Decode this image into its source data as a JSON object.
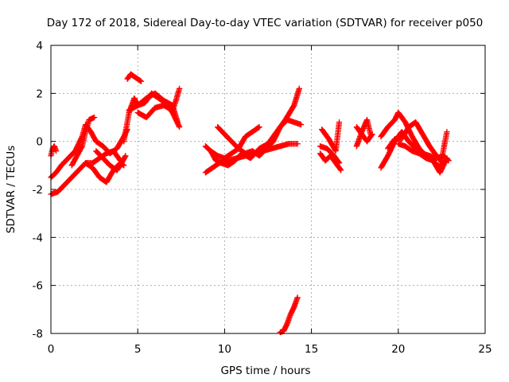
{
  "chart_data": {
    "type": "scatter",
    "title": "Day 172 of 2018, Sidereal Day-to-day VTEC variation (SDTVAR) for receiver p050",
    "xlabel": "GPS time / hours",
    "ylabel": "SDTVAR / TECUs",
    "xlim": [
      0,
      25
    ],
    "ylim": [
      -8,
      4
    ],
    "xticks": [
      0,
      5,
      10,
      15,
      20,
      25
    ],
    "yticks": [
      -8,
      -6,
      -4,
      -2,
      0,
      2,
      4
    ],
    "grid": true,
    "marker": "+",
    "color": "#ff0000",
    "series": [
      {
        "name": "SDTVAR",
        "segments": [
          {
            "x": [
              0.0,
              0.1,
              0.2,
              0.3
            ],
            "y": [
              -0.6,
              -0.3,
              -0.2,
              -0.4
            ]
          },
          {
            "x": [
              0.0,
              0.3,
              0.6,
              1.0,
              1.4,
              1.8,
              2.0,
              2.3,
              2.6,
              3.0,
              3.4,
              3.8,
              4.2,
              4.4
            ],
            "y": [
              -1.5,
              -1.3,
              -1.0,
              -0.7,
              -0.4,
              0.2,
              0.7,
              0.4,
              0.0,
              -0.2,
              -0.5,
              -0.3,
              0.2,
              0.5
            ]
          },
          {
            "x": [
              0.0,
              0.4,
              0.8,
              1.2,
              1.6,
              2.0,
              2.4,
              2.8,
              3.2,
              3.6,
              4.0
            ],
            "y": [
              -2.2,
              -2.1,
              -1.8,
              -1.5,
              -1.2,
              -0.9,
              -0.9,
              -0.7,
              -0.5,
              -0.4,
              -0.8
            ]
          },
          {
            "x": [
              1.2,
              1.5,
              1.8,
              2.0,
              2.2,
              2.5
            ],
            "y": [
              -1.0,
              -0.6,
              -0.2,
              0.4,
              0.9,
              1.0
            ]
          },
          {
            "x": [
              2.0,
              2.4,
              2.8,
              3.2,
              3.6,
              4.0,
              4.2
            ],
            "y": [
              -0.9,
              -1.1,
              -1.5,
              -1.7,
              -1.2,
              -0.9,
              -1.0
            ]
          },
          {
            "x": [
              2.6,
              3.0,
              3.4,
              3.8,
              4.0,
              4.3
            ],
            "y": [
              -0.4,
              -0.7,
              -1.0,
              -1.2,
              -1.0,
              -0.6
            ]
          },
          {
            "x": [
              4.2,
              4.5,
              4.8,
              5.0,
              5.4,
              5.8,
              6.2,
              6.6,
              7.0,
              7.4
            ],
            "y": [
              0.0,
              1.2,
              1.8,
              1.5,
              1.6,
              2.0,
              1.8,
              1.6,
              1.2,
              0.6
            ]
          },
          {
            "x": [
              4.4,
              4.6,
              4.8,
              5.0,
              5.2
            ],
            "y": [
              2.6,
              2.8,
              2.7,
              2.6,
              2.5
            ]
          },
          {
            "x": [
              4.5,
              5.0,
              5.5,
              6.0,
              6.5,
              7.0,
              7.3
            ],
            "y": [
              1.3,
              1.5,
              1.8,
              2.0,
              1.7,
              1.5,
              0.8
            ]
          },
          {
            "x": [
              5.0,
              5.5,
              6.0,
              6.5,
              7.0,
              7.2,
              7.4
            ],
            "y": [
              1.2,
              1.0,
              1.4,
              1.5,
              1.3,
              1.7,
              2.2
            ]
          },
          {
            "x": [
              8.9,
              9.3,
              9.7,
              10.2,
              10.7,
              11.2,
              11.7,
              12.2,
              12.7,
              13.2,
              13.7,
              14.2
            ],
            "y": [
              -1.3,
              -1.1,
              -0.9,
              -0.8,
              -0.7,
              -0.6,
              -0.5,
              -0.4,
              -0.3,
              -0.2,
              -0.1,
              -0.1
            ]
          },
          {
            "x": [
              8.9,
              9.2,
              9.5,
              9.8,
              10.2,
              10.6,
              11.0,
              11.5,
              12.0,
              12.5,
              13.0,
              13.5,
              14.0,
              14.3
            ],
            "y": [
              -0.2,
              -0.4,
              -0.8,
              -0.9,
              -1.0,
              -0.8,
              -0.5,
              -0.7,
              -0.3,
              -0.1,
              0.4,
              0.9,
              1.5,
              2.2
            ]
          },
          {
            "x": [
              9.6,
              10.0,
              10.4,
              10.8,
              11.2,
              11.6,
              12.0,
              12.4,
              12.8,
              13.2,
              13.6,
              14.0,
              14.4
            ],
            "y": [
              0.6,
              0.3,
              0.0,
              -0.3,
              -0.5,
              -0.4,
              -0.6,
              -0.3,
              0.0,
              0.6,
              0.9,
              0.8,
              0.7
            ]
          },
          {
            "x": [
              9.2,
              9.6,
              10.0,
              10.4,
              10.8,
              11.2,
              11.6,
              12.0
            ],
            "y": [
              -0.4,
              -0.6,
              -0.7,
              -0.5,
              -0.3,
              0.2,
              0.4,
              0.6
            ]
          },
          {
            "x": [
              13.2,
              13.4,
              13.6,
              13.8,
              14.0,
              14.2
            ],
            "y": [
              -7.95,
              -7.9,
              -7.6,
              -7.2,
              -6.9,
              -6.5
            ]
          },
          {
            "x": [
              15.5,
              15.8,
              16.1,
              16.4,
              16.7
            ],
            "y": [
              -0.5,
              -0.8,
              -0.6,
              -0.9,
              -1.2
            ]
          },
          {
            "x": [
              15.6,
              16.0,
              16.4,
              16.6
            ],
            "y": [
              0.5,
              0.1,
              -0.4,
              0.8
            ]
          },
          {
            "x": [
              15.5,
              15.9,
              16.3,
              16.6
            ],
            "y": [
              -0.2,
              -0.3,
              -0.6,
              -0.9
            ]
          },
          {
            "x": [
              17.6,
              17.9,
              18.2,
              18.4
            ],
            "y": [
              -0.2,
              0.4,
              0.9,
              0.3
            ]
          },
          {
            "x": [
              17.6,
              17.9,
              18.2,
              18.5
            ],
            "y": [
              0.6,
              0.3,
              0.0,
              0.3
            ]
          },
          {
            "x": [
              19.0,
              19.4,
              19.8,
              20.2,
              20.6,
              21.0,
              21.4,
              21.8,
              22.2,
              22.6,
              22.9
            ],
            "y": [
              -1.1,
              -0.6,
              0.0,
              0.4,
              0.0,
              -0.3,
              -0.5,
              -0.6,
              -0.7,
              -0.6,
              -0.8
            ]
          },
          {
            "x": [
              19.0,
              19.4,
              19.8,
              20.0,
              20.4,
              20.8,
              21.2,
              21.6,
              22.0,
              22.4,
              22.8
            ],
            "y": [
              0.2,
              0.6,
              0.9,
              1.2,
              0.8,
              0.2,
              -0.3,
              -0.6,
              -0.8,
              -1.1,
              0.4
            ]
          },
          {
            "x": [
              19.4,
              19.8,
              20.2,
              20.6,
              21.0,
              21.4,
              21.8,
              22.2,
              22.6
            ],
            "y": [
              -0.3,
              0.1,
              0.1,
              0.6,
              0.8,
              0.3,
              -0.2,
              -0.6,
              -0.9
            ]
          },
          {
            "x": [
              20.0,
              20.4,
              20.8,
              21.2,
              21.6,
              22.0,
              22.4,
              22.8
            ],
            "y": [
              -0.1,
              -0.2,
              -0.4,
              -0.5,
              -0.7,
              -0.8,
              -1.3,
              -0.7
            ]
          }
        ]
      }
    ]
  }
}
